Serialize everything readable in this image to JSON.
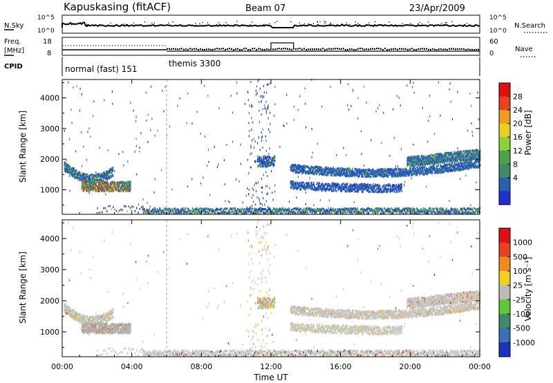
{
  "header": {
    "station": "Kapuskasing (fitACF)",
    "beam": "Beam 07",
    "date": "23/Apr/2009"
  },
  "aux_labels": {
    "nsky": "N.Sky",
    "nsearch": "N.Search",
    "freq_line1": "Freq.",
    "freq_line2": "[MHz]",
    "nave": "Nave",
    "cpid": "CPID",
    "nsky_ticks": [
      "10^5",
      "10^0"
    ],
    "nsearch_ticks": [
      "10^5",
      "10^0"
    ],
    "freq_ticks": [
      "18",
      "8"
    ],
    "nave_ticks": [
      "60",
      "0"
    ]
  },
  "cpid_segments": [
    {
      "label": "normal (fast) 151",
      "start": 0,
      "end": 6
    },
    {
      "label": "themis 3300",
      "start": 6,
      "end": 24
    }
  ],
  "colors": {
    "power_scale": [
      "#2030d0",
      "#2a5fb0",
      "#3e8a6a",
      "#4fa04a",
      "#8ccf3a",
      "#e8d020",
      "#f09a20",
      "#e84020",
      "#e01010"
    ],
    "velocity_scale": [
      "#2030c0",
      "#3a6fb8",
      "#3e8a6a",
      "#5ec83a",
      "#bbbbbb",
      "#f0d020",
      "#f08a20",
      "#e84020",
      "#e01010"
    ]
  },
  "chart_data": [
    {
      "type": "heatmap",
      "name": "power",
      "xlabel": "",
      "ylabel": "Slant Range [km]",
      "xlim": [
        0,
        24
      ],
      "ylim": [
        200,
        4600
      ],
      "yticks": [
        "1000",
        "2000",
        "3000",
        "4000"
      ],
      "colorbar": {
        "label": "Power [dB]",
        "ticks": [
          "28",
          "24",
          "20",
          "16",
          "12",
          "8",
          "4"
        ]
      }
    },
    {
      "type": "heatmap",
      "name": "velocity",
      "xlabel": "Time UT",
      "ylabel": "Slant Range [km]",
      "xlim": [
        0,
        24
      ],
      "ylim": [
        200,
        4600
      ],
      "xticks": [
        "00:00",
        "04:00",
        "08:00",
        "12:00",
        "16:00",
        "20:00",
        "00:00"
      ],
      "yticks": [
        "1000",
        "2000",
        "3000",
        "4000"
      ],
      "colorbar": {
        "label": "Velocity [m s⁻¹]",
        "ticks": [
          "1000",
          "500",
          "100",
          "25",
          "-25",
          "-100",
          "-500",
          "-1000"
        ]
      }
    }
  ]
}
